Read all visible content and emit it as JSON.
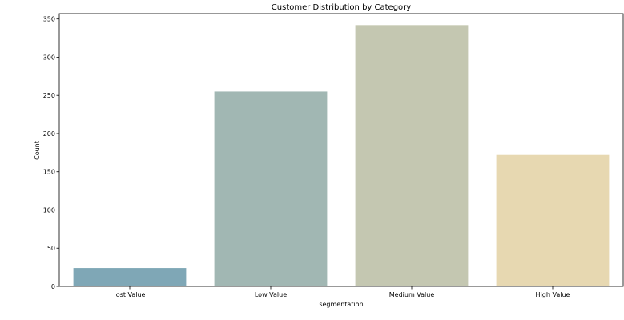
{
  "chart_data": {
    "type": "bar",
    "title": "Customer Distribution by Category",
    "xlabel": "segmentation",
    "ylabel": "Count",
    "categories": [
      "lost Value",
      "Low Value",
      "Medium Value",
      "High Value"
    ],
    "values": [
      24,
      255,
      342,
      172
    ],
    "colors": [
      "#7fa7b6",
      "#a1b7b3",
      "#c4c7b1",
      "#e7d8b1"
    ],
    "ylim": [
      0,
      357
    ],
    "yticks": [
      0,
      50,
      100,
      150,
      200,
      250,
      300,
      350
    ],
    "grid": false,
    "legend": "none"
  }
}
